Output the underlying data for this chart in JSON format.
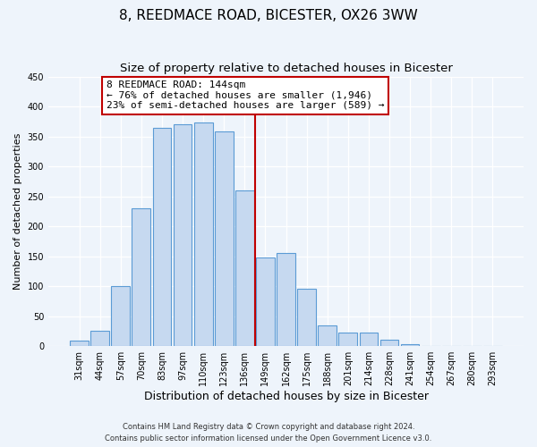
{
  "title": "8, REEDMACE ROAD, BICESTER, OX26 3WW",
  "subtitle": "Size of property relative to detached houses in Bicester",
  "xlabel": "Distribution of detached houses by size in Bicester",
  "ylabel": "Number of detached properties",
  "bar_labels": [
    "31sqm",
    "44sqm",
    "57sqm",
    "70sqm",
    "83sqm",
    "97sqm",
    "110sqm",
    "123sqm",
    "136sqm",
    "149sqm",
    "162sqm",
    "175sqm",
    "188sqm",
    "201sqm",
    "214sqm",
    "228sqm",
    "241sqm",
    "254sqm",
    "267sqm",
    "280sqm",
    "293sqm"
  ],
  "bar_values": [
    10,
    25,
    100,
    230,
    365,
    370,
    373,
    358,
    260,
    148,
    155,
    96,
    34,
    22,
    22,
    11,
    3,
    1,
    1,
    0,
    1
  ],
  "bar_color": "#c6d9f0",
  "bar_edge_color": "#5b9bd5",
  "vline_index": 8,
  "annotation_title": "8 REEDMACE ROAD: 144sqm",
  "annotation_line1": "← 76% of detached houses are smaller (1,946)",
  "annotation_line2": "23% of semi-detached houses are larger (589) →",
  "annotation_box_color": "#ffffff",
  "annotation_box_edge": "#c00000",
  "vline_color": "#c00000",
  "footer1": "Contains HM Land Registry data © Crown copyright and database right 2024.",
  "footer2": "Contains public sector information licensed under the Open Government Licence v3.0.",
  "ylim": [
    0,
    450
  ],
  "title_fontsize": 11,
  "subtitle_fontsize": 9.5,
  "label_fontsize": 8,
  "tick_fontsize": 7,
  "annotation_fontsize": 8,
  "footer_fontsize": 6,
  "background_color": "#eef4fb"
}
